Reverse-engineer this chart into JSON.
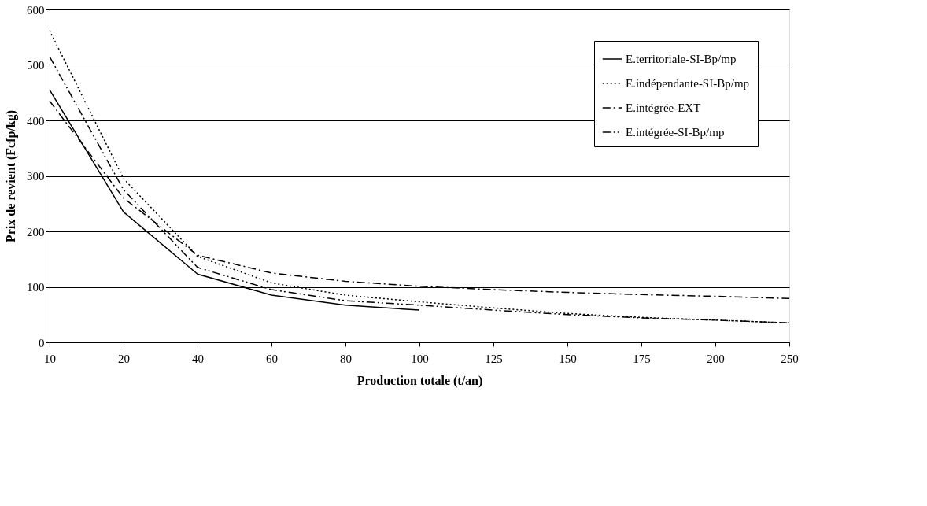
{
  "chart_data": {
    "type": "line",
    "xlabel": "Production totale (t/an)",
    "ylabel": "Prix de revient (Fcfp/kg)",
    "categories": [
      "10",
      "20",
      "40",
      "60",
      "80",
      "100",
      "125",
      "150",
      "175",
      "200",
      "250"
    ],
    "series": [
      {
        "name": "E.territoriale-SI-Bp/mp",
        "color": "#000000",
        "line_style": "solid",
        "values": [
          455,
          235,
          123,
          85,
          67,
          58,
          null,
          null,
          null,
          null,
          null
        ]
      },
      {
        "name": "E.indépendante-SI-Bp/mp",
        "color": "#000000",
        "line_style": "dotted",
        "values": [
          562,
          295,
          155,
          107,
          85,
          73,
          62,
          52,
          45,
          40,
          35
        ]
      },
      {
        "name": "E.intégrée-EXT",
        "color": "#000000",
        "line_style": "dashdot",
        "values": [
          435,
          260,
          157,
          125,
          110,
          101,
          95,
          90,
          86,
          83,
          79
        ]
      },
      {
        "name": "E.intégrée-SI-Bp/mp",
        "color": "#000000",
        "line_style": "dashdotdot",
        "values": [
          515,
          275,
          135,
          95,
          75,
          67,
          58,
          50,
          44,
          40,
          35
        ]
      }
    ],
    "ylim": [
      0,
      600
    ],
    "yticks": [
      0,
      100,
      200,
      300,
      400,
      500,
      600
    ],
    "grid": "y",
    "legend": "top right",
    "marker": "none"
  }
}
